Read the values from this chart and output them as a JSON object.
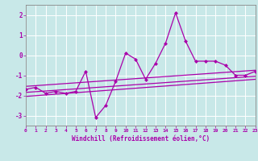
{
  "x": [
    0,
    1,
    2,
    3,
    4,
    5,
    6,
    7,
    8,
    9,
    10,
    11,
    12,
    13,
    14,
    15,
    16,
    17,
    18,
    19,
    20,
    21,
    22,
    23
  ],
  "y_line": [
    -1.7,
    -1.6,
    -1.9,
    -1.8,
    -1.9,
    -1.8,
    -0.8,
    -3.1,
    -2.5,
    -1.3,
    0.1,
    -0.2,
    -1.2,
    -0.4,
    0.6,
    2.1,
    0.7,
    -0.3,
    -0.3,
    -0.3,
    -0.5,
    -1.0,
    -1.0,
    -0.8
  ],
  "trend1_x": [
    0,
    23
  ],
  "trend1_y": [
    -1.55,
    -0.75
  ],
  "trend2_x": [
    0,
    23
  ],
  "trend2_y": [
    -1.85,
    -1.05
  ],
  "trend3_x": [
    0,
    23
  ],
  "trend3_y": [
    -2.05,
    -1.2
  ],
  "line_color": "#aa00aa",
  "bg_color": "#c8e8e8",
  "grid_color": "#ffffff",
  "xlabel": "Windchill (Refroidissement éolien,°C)",
  "xlim": [
    0,
    23
  ],
  "ylim": [
    -3.5,
    2.5
  ],
  "yticks": [
    -3,
    -2,
    -1,
    0,
    1,
    2
  ],
  "xticks": [
    0,
    1,
    2,
    3,
    4,
    5,
    6,
    7,
    8,
    9,
    10,
    11,
    12,
    13,
    14,
    15,
    16,
    17,
    18,
    19,
    20,
    21,
    22,
    23
  ]
}
